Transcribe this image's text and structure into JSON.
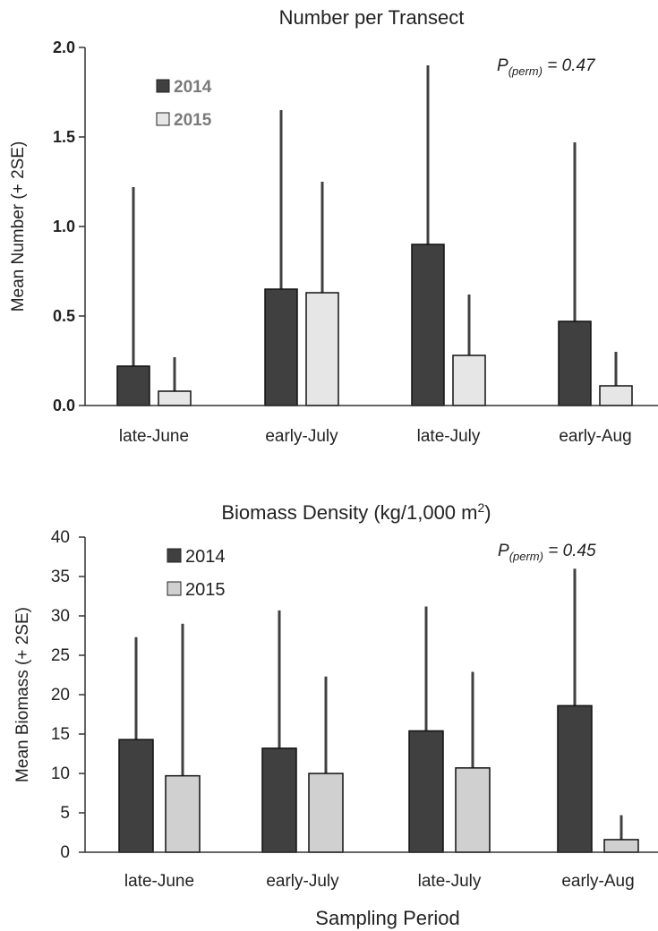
{
  "chart_data": [
    {
      "type": "bar",
      "title": "Number per Transect",
      "ylabel": "Mean Number (+ 2SE)",
      "xlabel": "",
      "ylim": [
        0,
        2.0
      ],
      "yticks": [
        "0.0",
        "0.5",
        "1.0",
        "1.5",
        "2.0"
      ],
      "yticks_values": [
        0,
        0.5,
        1.0,
        1.5,
        2.0
      ],
      "categories": [
        "late-June",
        "early-July",
        "late-July",
        "early-Aug"
      ],
      "series": [
        {
          "name": "2014",
          "values": [
            0.22,
            0.65,
            0.9,
            0.47
          ],
          "errors": [
            1.0,
            1.0,
            1.0,
            1.0
          ],
          "color": "#404040"
        },
        {
          "name": "2015",
          "values": [
            0.08,
            0.63,
            0.28,
            0.11
          ],
          "errors": [
            0.19,
            0.62,
            0.34,
            0.19
          ],
          "color": "#e6e6e6"
        }
      ],
      "annotation": {
        "p_main": "P",
        "p_sub": "(perm)",
        "p_value": " = 0.47"
      },
      "legend_position": "top-left",
      "grid": false
    },
    {
      "type": "bar",
      "title_main": "Biomass Density (kg/1,000 m",
      "title_sup": "2",
      "title_end": ")",
      "ylabel": "Mean Biomass (+ 2SE)",
      "xlabel": "Sampling Period",
      "ylim": [
        0,
        40
      ],
      "yticks": [
        "0",
        "5",
        "10",
        "15",
        "20",
        "25",
        "30",
        "35",
        "40"
      ],
      "yticks_values": [
        0,
        5,
        10,
        15,
        20,
        25,
        30,
        35,
        40
      ],
      "categories": [
        "late-June",
        "early-July",
        "late-July",
        "early-Aug"
      ],
      "series": [
        {
          "name": "2014",
          "values": [
            14.3,
            13.2,
            15.4,
            18.6
          ],
          "errors": [
            13.0,
            17.5,
            15.8,
            17.4
          ],
          "color": "#404040"
        },
        {
          "name": "2015",
          "values": [
            9.7,
            10.0,
            10.7,
            1.6
          ],
          "errors": [
            19.3,
            12.3,
            12.2,
            3.1
          ],
          "color": "#d0d0d0"
        }
      ],
      "annotation": {
        "p_main": "P",
        "p_sub": "(perm)",
        "p_value": " = 0.45"
      },
      "legend_position": "top-left",
      "grid": false
    }
  ]
}
